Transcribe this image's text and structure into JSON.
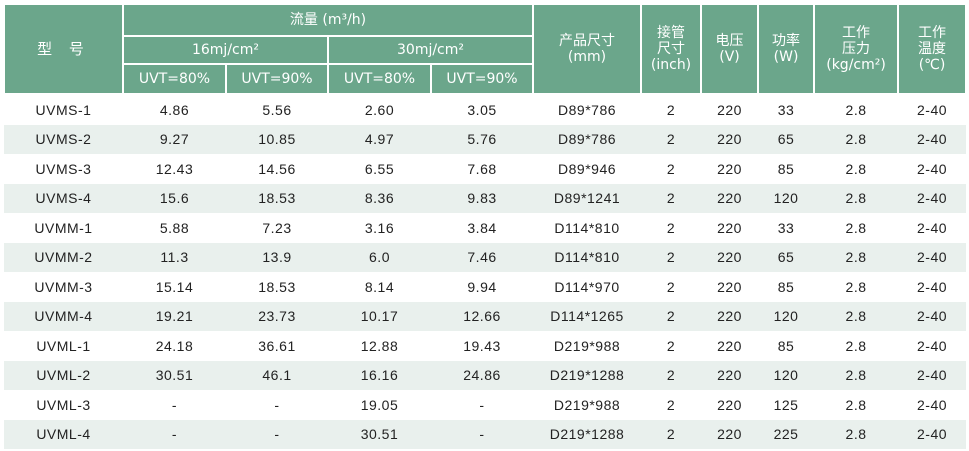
{
  "header": {
    "model": "型 号",
    "flow": "流量 (m³/h)",
    "dose16": "16mj/cm²",
    "dose30": "30mj/cm²",
    "uvt80": "UVT=80%",
    "uvt90": "UVT=90%",
    "size": [
      "产品尺寸",
      "(mm)"
    ],
    "pipe": [
      "接管",
      "尺寸",
      "(inch)"
    ],
    "voltage": [
      "电压",
      "(V)"
    ],
    "power": [
      "功率",
      "(W)"
    ],
    "pressure": [
      "工作",
      "压力",
      "(kg/cm²)"
    ],
    "temp": [
      "工作",
      "温度",
      "(℃)"
    ]
  },
  "rows": [
    [
      "UVMS-1",
      "4.86",
      "5.56",
      "2.60",
      "3.05",
      "D89*786",
      "2",
      "220",
      "33",
      "2.8",
      "2-40"
    ],
    [
      "UVMS-2",
      "9.27",
      "10.85",
      "4.97",
      "5.76",
      "D89*786",
      "2",
      "220",
      "65",
      "2.8",
      "2-40"
    ],
    [
      "UVMS-3",
      "12.43",
      "14.56",
      "6.55",
      "7.68",
      "D89*946",
      "2",
      "220",
      "85",
      "2.8",
      "2-40"
    ],
    [
      "UVMS-4",
      "15.6",
      "18.53",
      "8.36",
      "9.83",
      "D89*1241",
      "2",
      "220",
      "120",
      "2.8",
      "2-40"
    ],
    [
      "UVMM-1",
      "5.88",
      "7.23",
      "3.16",
      "3.84",
      "D114*810",
      "2",
      "220",
      "33",
      "2.8",
      "2-40"
    ],
    [
      "UVMM-2",
      "11.3",
      "13.9",
      "6.0",
      "7.46",
      "D114*810",
      "2",
      "220",
      "65",
      "2.8",
      "2-40"
    ],
    [
      "UVMM-3",
      "15.14",
      "18.53",
      "8.14",
      "9.94",
      "D114*970",
      "2",
      "220",
      "85",
      "2.8",
      "2-40"
    ],
    [
      "UVMM-4",
      "19.21",
      "23.73",
      "10.17",
      "12.66",
      "D114*1265",
      "2",
      "220",
      "120",
      "2.8",
      "2-40"
    ],
    [
      "UVML-1",
      "24.18",
      "36.61",
      "12.88",
      "19.43",
      "D219*988",
      "2",
      "220",
      "85",
      "2.8",
      "2-40"
    ],
    [
      "UVML-2",
      "30.51",
      "46.1",
      "16.16",
      "24.86",
      "D219*1288",
      "2",
      "220",
      "120",
      "2.8",
      "2-40"
    ],
    [
      "UVML-3",
      "-",
      "-",
      "19.05",
      "-",
      "D219*988",
      "2",
      "220",
      "125",
      "2.8",
      "2-40"
    ],
    [
      "UVML-4",
      "-",
      "-",
      "30.51",
      "-",
      "D219*1288",
      "2",
      "220",
      "225",
      "2.8",
      "2-40"
    ]
  ]
}
